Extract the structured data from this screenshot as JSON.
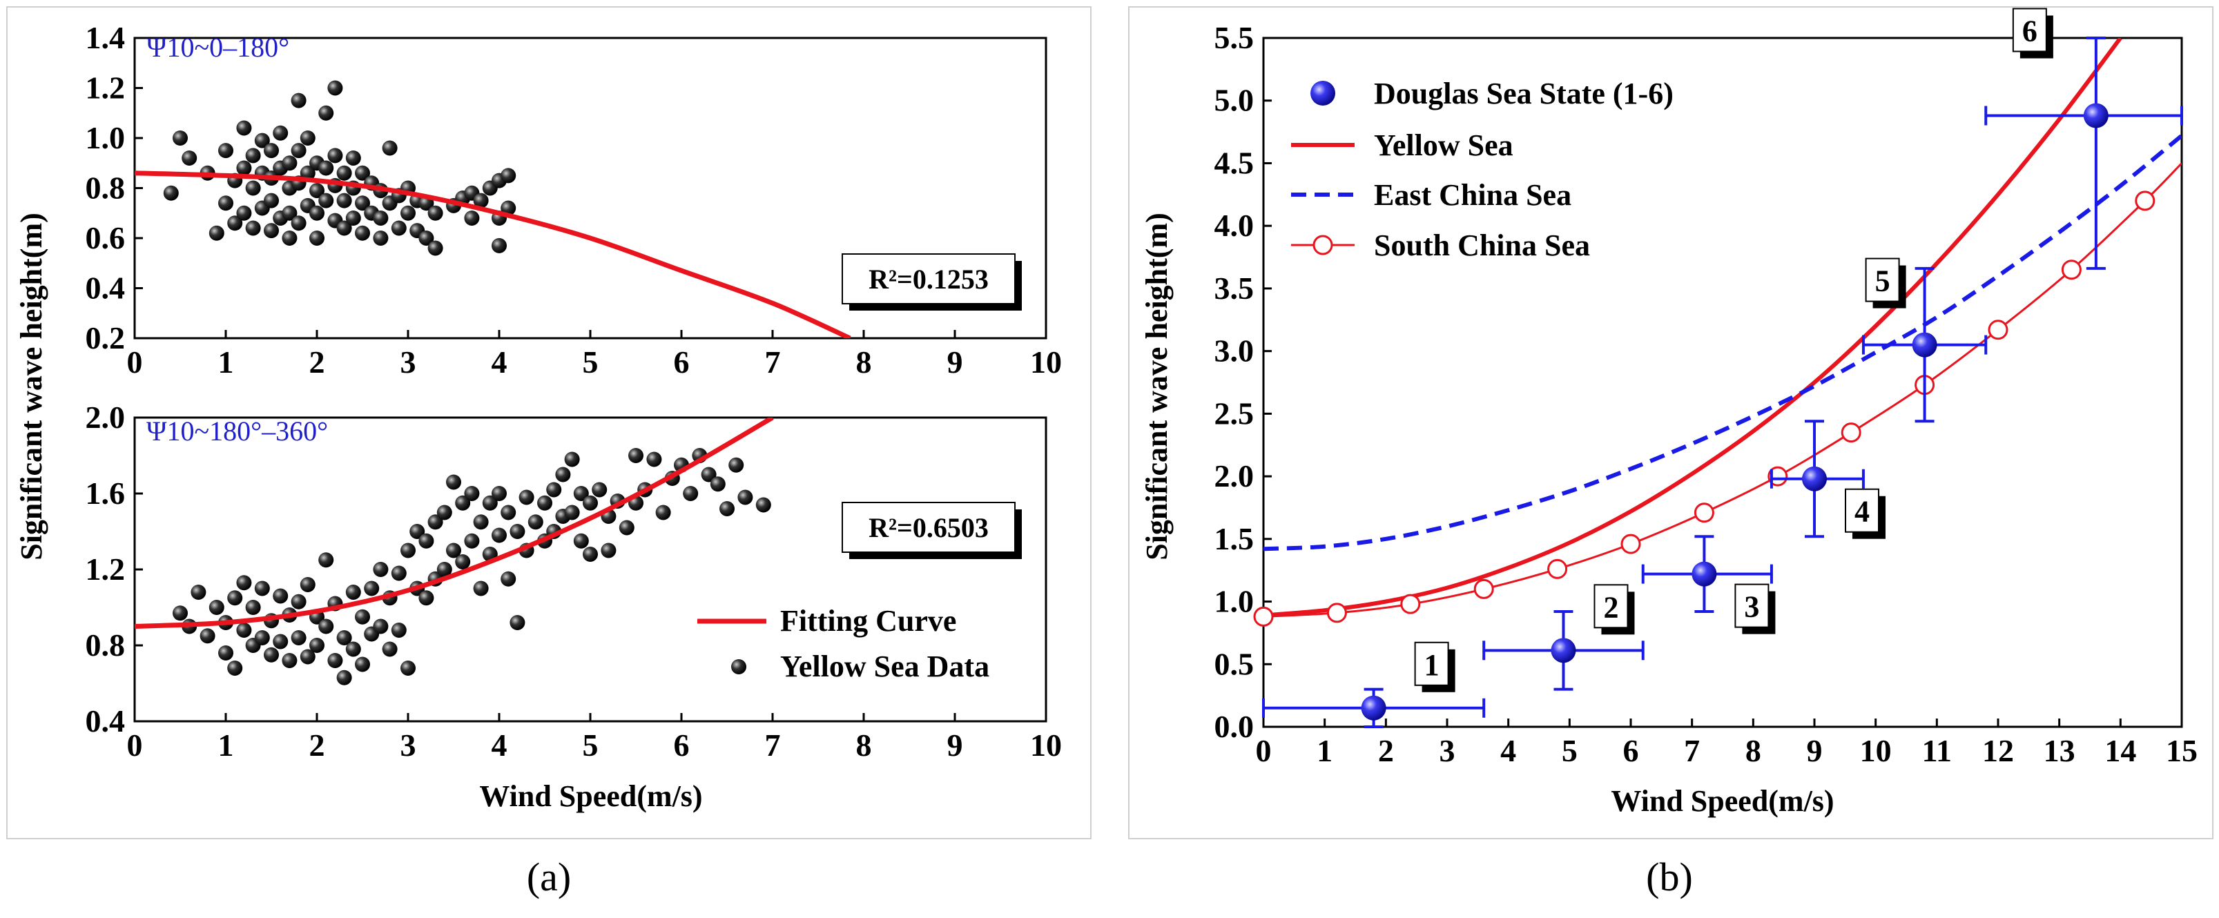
{
  "chart_data": [
    {
      "id": "a-top",
      "type": "scatter",
      "panel_label": "(a)",
      "annotation": "Ψ10~0–180°",
      "r2_text": "R²=0.1253",
      "xlim": [
        0,
        10
      ],
      "ylim": [
        0.2,
        1.4
      ],
      "xticks": [
        "0",
        "1",
        "2",
        "3",
        "4",
        "5",
        "6",
        "7",
        "8",
        "9",
        "10"
      ],
      "yticks": [
        "0.2",
        "0.4",
        "0.6",
        "0.8",
        "1.0",
        "1.2",
        "1.4"
      ],
      "fit_curve": {
        "color": "#e8141e",
        "x": [
          0,
          1,
          2,
          3,
          4,
          5,
          6,
          7,
          7.85
        ],
        "y": [
          0.86,
          0.85,
          0.83,
          0.78,
          0.7,
          0.6,
          0.47,
          0.34,
          0.2
        ]
      },
      "scatter": {
        "x": [
          0.4,
          0.5,
          0.6,
          0.8,
          0.9,
          1.0,
          1.0,
          1.1,
          1.1,
          1.2,
          1.2,
          1.2,
          1.3,
          1.3,
          1.3,
          1.4,
          1.4,
          1.4,
          1.5,
          1.5,
          1.5,
          1.5,
          1.6,
          1.6,
          1.6,
          1.7,
          1.7,
          1.7,
          1.7,
          1.8,
          1.8,
          1.8,
          1.8,
          1.9,
          1.9,
          1.9,
          2.0,
          2.0,
          2.0,
          2.0,
          2.1,
          2.1,
          2.1,
          2.2,
          2.2,
          2.2,
          2.2,
          2.3,
          2.3,
          2.3,
          2.4,
          2.4,
          2.4,
          2.5,
          2.5,
          2.5,
          2.6,
          2.6,
          2.7,
          2.7,
          2.7,
          2.8,
          2.8,
          2.9,
          2.9,
          3.0,
          3.0,
          3.1,
          3.1,
          3.2,
          3.2,
          3.3,
          3.3,
          3.5,
          3.6,
          3.7,
          3.7,
          3.8,
          3.9,
          4.0,
          4.0,
          4.0,
          4.1,
          4.1
        ],
        "y": [
          0.78,
          1.0,
          0.92,
          0.86,
          0.62,
          0.95,
          0.74,
          0.83,
          0.66,
          1.04,
          0.88,
          0.7,
          0.93,
          0.8,
          0.64,
          0.99,
          0.86,
          0.72,
          0.95,
          0.84,
          0.75,
          0.63,
          1.02,
          0.88,
          0.68,
          0.9,
          0.8,
          0.7,
          0.6,
          1.15,
          0.95,
          0.82,
          0.66,
          1.0,
          0.86,
          0.73,
          0.9,
          0.79,
          0.7,
          0.6,
          1.1,
          0.88,
          0.75,
          1.2,
          0.93,
          0.81,
          0.67,
          0.86,
          0.75,
          0.64,
          0.92,
          0.8,
          0.68,
          0.86,
          0.74,
          0.62,
          0.82,
          0.7,
          0.79,
          0.68,
          0.6,
          0.96,
          0.74,
          0.77,
          0.64,
          0.8,
          0.7,
          0.75,
          0.63,
          0.74,
          0.6,
          0.7,
          0.56,
          0.73,
          0.76,
          0.78,
          0.68,
          0.75,
          0.8,
          0.83,
          0.68,
          0.57,
          0.85,
          0.72
        ]
      }
    },
    {
      "id": "a-bottom",
      "type": "scatter",
      "annotation": "Ψ10~180°–360°",
      "r2_text": "R²=0.6503",
      "xlabel": "Wind Speed(m/s)",
      "ylabel": "Significant wave height(m)",
      "xlim": [
        0,
        10
      ],
      "ylim": [
        0.4,
        2.0
      ],
      "xticks": [
        "0",
        "1",
        "2",
        "3",
        "4",
        "5",
        "6",
        "7",
        "8",
        "9",
        "10"
      ],
      "yticks": [
        "0.4",
        "0.8",
        "1.2",
        "1.6",
        "2.0"
      ],
      "legend": [
        {
          "label": "Fitting Curve",
          "kind": "line",
          "color": "#e8141e"
        },
        {
          "label": "Yellow Sea Data",
          "kind": "marker",
          "color": "#111111"
        }
      ],
      "fit_curve": {
        "color": "#e8141e",
        "x": [
          0,
          1,
          2,
          3,
          4,
          5,
          6,
          7
        ],
        "y": [
          0.9,
          0.92,
          0.98,
          1.09,
          1.26,
          1.47,
          1.72,
          2.0
        ]
      },
      "scatter": {
        "x": [
          0.5,
          0.6,
          0.7,
          0.8,
          0.9,
          1.0,
          1.0,
          1.1,
          1.1,
          1.2,
          1.2,
          1.3,
          1.3,
          1.4,
          1.4,
          1.5,
          1.5,
          1.6,
          1.6,
          1.7,
          1.7,
          1.8,
          1.8,
          1.9,
          1.9,
          2.0,
          2.0,
          2.1,
          2.1,
          2.2,
          2.2,
          2.3,
          2.3,
          2.4,
          2.4,
          2.5,
          2.5,
          2.6,
          2.6,
          2.7,
          2.7,
          2.8,
          2.8,
          2.9,
          2.9,
          3.0,
          3.0,
          3.1,
          3.1,
          3.2,
          3.2,
          3.3,
          3.3,
          3.4,
          3.4,
          3.5,
          3.5,
          3.6,
          3.6,
          3.7,
          3.7,
          3.8,
          3.8,
          3.9,
          3.9,
          4.0,
          4.0,
          4.1,
          4.1,
          4.2,
          4.2,
          4.3,
          4.3,
          4.4,
          4.5,
          4.5,
          4.6,
          4.6,
          4.7,
          4.7,
          4.8,
          4.8,
          4.9,
          4.9,
          5.0,
          5.0,
          5.1,
          5.2,
          5.2,
          5.3,
          5.4,
          5.5,
          5.5,
          5.6,
          5.7,
          5.8,
          5.9,
          6.0,
          6.1,
          6.2,
          6.3,
          6.4,
          6.5,
          6.6,
          6.7,
          6.9
        ],
        "y": [
          0.97,
          0.9,
          1.08,
          0.85,
          1.0,
          0.92,
          0.76,
          1.05,
          0.68,
          1.13,
          0.88,
          1.0,
          0.8,
          1.1,
          0.84,
          0.93,
          0.75,
          1.06,
          0.82,
          0.96,
          0.72,
          1.03,
          0.84,
          1.12,
          0.74,
          0.95,
          0.8,
          1.25,
          0.9,
          1.02,
          0.72,
          0.84,
          0.63,
          1.08,
          0.78,
          0.95,
          0.7,
          1.1,
          0.86,
          1.2,
          0.9,
          1.05,
          0.78,
          1.18,
          0.88,
          1.3,
          0.68,
          1.4,
          1.1,
          1.35,
          1.05,
          1.45,
          1.15,
          1.5,
          1.2,
          1.66,
          1.3,
          1.55,
          1.24,
          1.6,
          1.35,
          1.45,
          1.1,
          1.55,
          1.28,
          1.6,
          1.38,
          1.5,
          1.15,
          1.4,
          0.92,
          1.58,
          1.3,
          1.45,
          1.55,
          1.35,
          1.62,
          1.4,
          1.7,
          1.48,
          1.78,
          1.5,
          1.6,
          1.35,
          1.55,
          1.28,
          1.62,
          1.48,
          1.3,
          1.56,
          1.42,
          1.8,
          1.55,
          1.62,
          1.78,
          1.5,
          1.68,
          1.75,
          1.6,
          1.8,
          1.7,
          1.65,
          1.52,
          1.75,
          1.58,
          1.54
        ]
      }
    },
    {
      "id": "b",
      "type": "line",
      "panel_label": "(b)",
      "xlabel": "Wind Speed(m/s)",
      "ylabel": "Significant wave height(m)",
      "xlim": [
        0,
        15
      ],
      "ylim": [
        0,
        5.5
      ],
      "xticks": [
        "0",
        "1",
        "2",
        "3",
        "4",
        "5",
        "6",
        "7",
        "8",
        "9",
        "10",
        "11",
        "12",
        "13",
        "14",
        "15"
      ],
      "yticks": [
        "0.0",
        "0.5",
        "1.0",
        "1.5",
        "2.0",
        "2.5",
        "3.0",
        "3.5",
        "4.0",
        "4.5",
        "5.0",
        "5.5"
      ],
      "legend": [
        {
          "label": "Douglas Sea State (1-6)",
          "kind": "marker",
          "color": "#1a1ae6"
        },
        {
          "label": "Yellow Sea",
          "kind": "line",
          "color": "#e8141e"
        },
        {
          "label": "East China Sea",
          "kind": "dash",
          "color": "#1a1ae6"
        },
        {
          "label": "South China Sea",
          "kind": "line-circle",
          "color": "#e8141e"
        }
      ],
      "series": [
        {
          "name": "Yellow Sea",
          "color": "#e8141e",
          "x": [
            0,
            1,
            2,
            3,
            4,
            5,
            6,
            7,
            8,
            9,
            10,
            11,
            12,
            13,
            14
          ],
          "y": [
            0.89,
            0.93,
            1.0,
            1.11,
            1.27,
            1.47,
            1.72,
            2.02,
            2.36,
            2.75,
            3.2,
            3.7,
            4.25,
            4.85,
            5.5
          ]
        },
        {
          "name": "East China Sea",
          "color": "#1a1ae6",
          "dashed": true,
          "x": [
            0,
            1,
            2,
            3,
            4,
            5,
            6,
            7,
            8,
            9,
            10,
            11,
            12,
            13,
            14,
            15
          ],
          "y": [
            1.42,
            1.44,
            1.5,
            1.6,
            1.73,
            1.88,
            2.06,
            2.26,
            2.48,
            2.72,
            2.99,
            3.27,
            3.6,
            3.95,
            4.32,
            4.72
          ]
        },
        {
          "name": "South China Sea",
          "color": "#e8141e",
          "x": [
            0,
            1.2,
            2.4,
            3.6,
            4.8,
            6.0,
            7.2,
            8.4,
            9.6,
            10.8,
            12.0,
            13.2,
            14.4,
            15.0
          ],
          "y": [
            0.88,
            0.91,
            0.98,
            1.1,
            1.26,
            1.46,
            1.71,
            2.0,
            2.35,
            2.73,
            3.17,
            3.65,
            4.2,
            4.5
          ],
          "markers": [
            0,
            1.2,
            2.4,
            3.6,
            4.8,
            6.0,
            7.2,
            8.4,
            9.6,
            10.8,
            12.0,
            13.2,
            14.4
          ]
        }
      ],
      "points": [
        {
          "label": "1",
          "x": 1.8,
          "y": 0.15,
          "xerr": [
            0,
            3.6
          ],
          "yerr": [
            0.0,
            0.3
          ]
        },
        {
          "label": "2",
          "x": 4.9,
          "y": 0.61,
          "xerr": [
            3.6,
            6.2
          ],
          "yerr": [
            0.3,
            0.92
          ]
        },
        {
          "label": "3",
          "x": 7.2,
          "y": 1.22,
          "xerr": [
            6.2,
            8.3
          ],
          "yerr": [
            0.92,
            1.52
          ]
        },
        {
          "label": "4",
          "x": 9.0,
          "y": 1.98,
          "xerr": [
            8.3,
            9.8
          ],
          "yerr": [
            1.52,
            2.44
          ]
        },
        {
          "label": "5",
          "x": 10.8,
          "y": 3.05,
          "xerr": [
            9.8,
            11.8
          ],
          "yerr": [
            2.44,
            3.66
          ]
        },
        {
          "label": "6",
          "x": 13.6,
          "y": 4.88,
          "xerr": [
            11.8,
            15.0
          ],
          "yerr": [
            3.66,
            5.5
          ]
        }
      ]
    }
  ]
}
